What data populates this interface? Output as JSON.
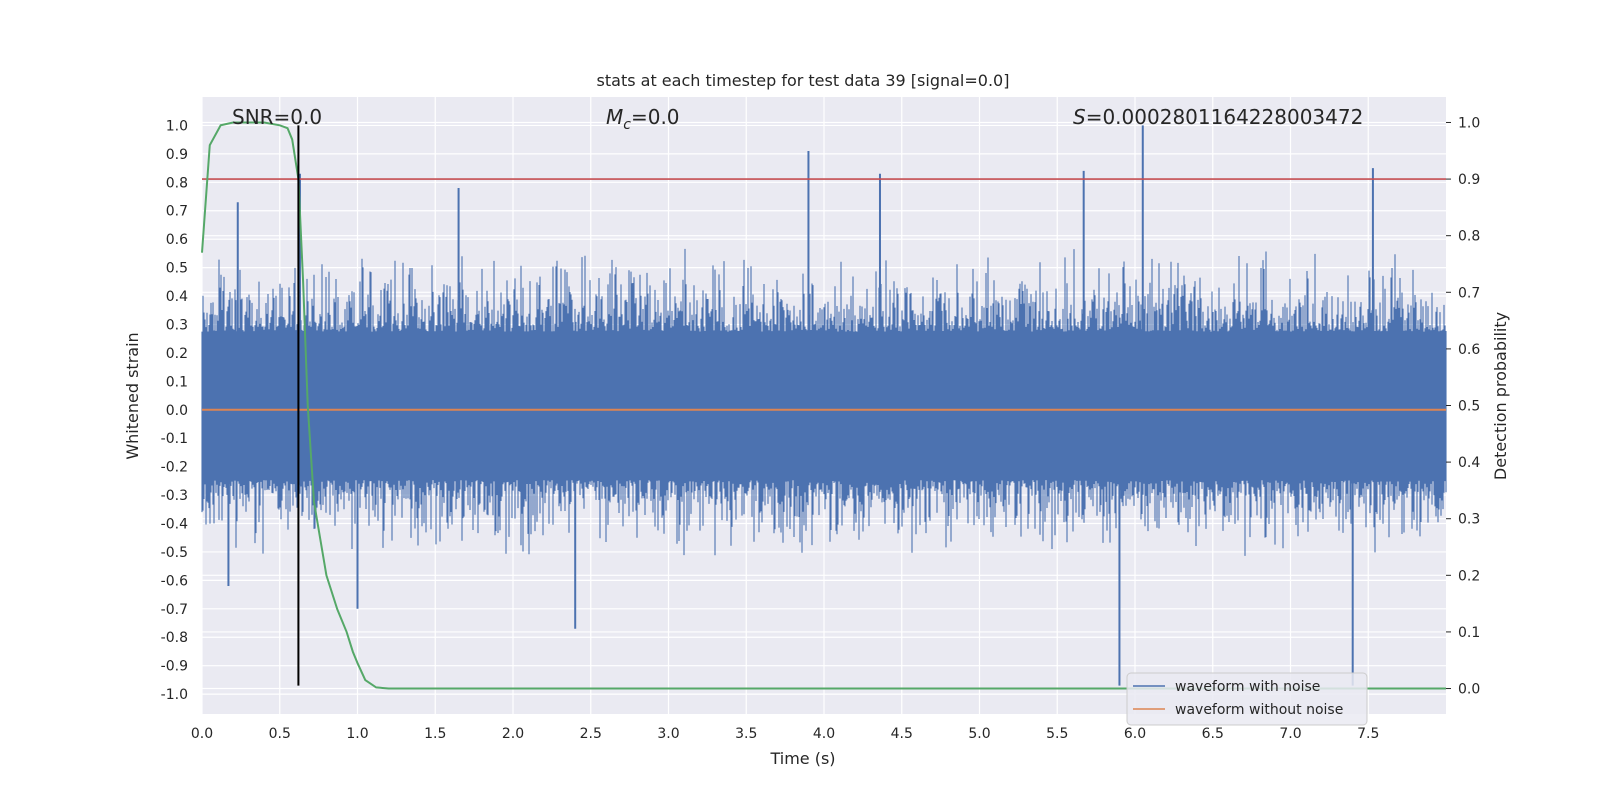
{
  "chart_data": {
    "type": "line",
    "title": "stats at each timestep for test data 39 [signal=0.0]",
    "xlabel": "Time (s)",
    "ylabel": "Whitened strain",
    "y2label": "Detection probability",
    "xlim": [
      0.0,
      8.0
    ],
    "ylim": [
      -1.07,
      1.1
    ],
    "y2lim": [
      -0.045,
      1.045
    ],
    "xticks": [
      "0.0",
      "0.5",
      "1.0",
      "1.5",
      "2.0",
      "2.5",
      "3.0",
      "3.5",
      "4.0",
      "4.5",
      "5.0",
      "5.5",
      "6.0",
      "6.5",
      "7.0",
      "7.5"
    ],
    "yticks": [
      "1.0",
      "0.9",
      "0.8",
      "0.7",
      "0.6",
      "0.5",
      "0.4",
      "0.3",
      "0.2",
      "0.1",
      "0.0",
      "-0.1",
      "-0.2",
      "-0.3",
      "-0.4",
      "-0.5",
      "-0.6",
      "-0.7",
      "-0.8",
      "-0.9",
      "-1.0"
    ],
    "y2ticks": [
      "1.0",
      "0.9",
      "0.8",
      "0.7",
      "0.6",
      "0.5",
      "0.4",
      "0.3",
      "0.2",
      "0.1",
      "0.0"
    ],
    "grid": true,
    "legend_position": "lower-right",
    "annotations": {
      "snr": "SNR=0.0",
      "mc_symbol": "M",
      "mc_sub": "c",
      "mc_value": "=0.0",
      "s_symbol": "S",
      "s_value": "=0.0002801164228003472"
    },
    "series": [
      {
        "name": "waveform with noise",
        "color": "#4c72b0",
        "style": "dense-noise",
        "upper_envelope_typical": 0.5,
        "lower_envelope_typical": -0.45,
        "spikes": [
          {
            "x": 0.23,
            "y": 0.73
          },
          {
            "x": 0.63,
            "y": 0.83
          },
          {
            "x": 1.65,
            "y": 0.78
          },
          {
            "x": 3.9,
            "y": 0.91
          },
          {
            "x": 4.36,
            "y": 0.83
          },
          {
            "x": 5.67,
            "y": 0.84
          },
          {
            "x": 6.05,
            "y": 1.0
          },
          {
            "x": 7.53,
            "y": 0.85
          },
          {
            "x": 2.4,
            "y": -0.77
          },
          {
            "x": 5.9,
            "y": -0.97
          },
          {
            "x": 7.4,
            "y": -0.97
          },
          {
            "x": 0.17,
            "y": -0.62
          },
          {
            "x": 1.0,
            "y": -0.7
          }
        ]
      },
      {
        "name": "waveform without noise",
        "color": "#dd8452",
        "x": [
          0.0,
          8.0
        ],
        "y": [
          0.0,
          0.0
        ]
      },
      {
        "name": "detection probability",
        "color": "#55a868",
        "axis": "right",
        "x": [
          0.0,
          0.05,
          0.12,
          0.2,
          0.3,
          0.4,
          0.5,
          0.55,
          0.58,
          0.62,
          0.65,
          0.68,
          0.72,
          0.8,
          0.87,
          0.93,
          0.97,
          1.0,
          1.05,
          1.12,
          1.2,
          8.0
        ],
        "y": [
          0.77,
          0.96,
          0.995,
          1.0,
          1.0,
          1.0,
          0.995,
          0.99,
          0.97,
          0.9,
          0.72,
          0.5,
          0.33,
          0.2,
          0.14,
          0.1,
          0.065,
          0.045,
          0.015,
          0.002,
          0.0,
          0.0
        ]
      }
    ],
    "threshold": {
      "axis": "right",
      "value": 0.9,
      "color": "#c44e52"
    },
    "marker_line": {
      "x": 0.62,
      "y_from": -0.97,
      "y_to": 1.0,
      "color": "#000000"
    }
  }
}
